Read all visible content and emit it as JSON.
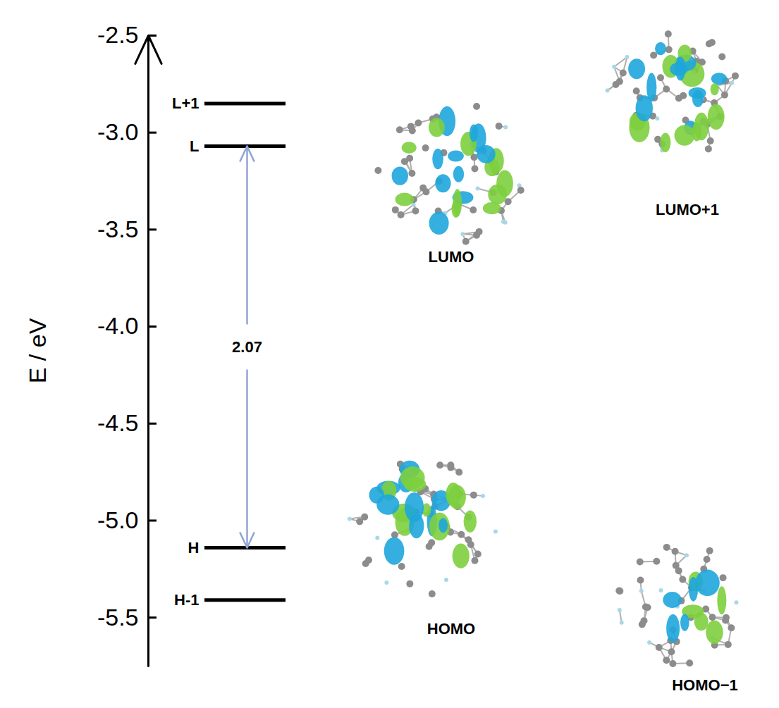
{
  "chart_data": {
    "type": "energy_level",
    "y_label": "E / eV",
    "ylim": [
      -5.75,
      -2.5
    ],
    "yticks": [
      -5.5,
      {
        "value": -5,
        "label": "-5.0"
      },
      -4.5,
      {
        "value": -4,
        "label": "-4.0"
      },
      -3.5,
      {
        "value": -3,
        "label": "-3.0"
      },
      -2.5
    ],
    "levels": [
      {
        "name": "L+1",
        "value": -2.85
      },
      {
        "name": "L",
        "value": -3.07
      },
      {
        "name": "H",
        "value": -5.14
      },
      {
        "name": "H-1",
        "value": -5.41
      }
    ],
    "color": "#000000",
    "gap": {
      "from": "H",
      "to": "L",
      "value": 2.07,
      "color": "#93a5d6"
    },
    "orbitals": [
      "LUMO",
      "LUMO+1",
      "HOMO",
      "HOMO−1"
    ]
  }
}
